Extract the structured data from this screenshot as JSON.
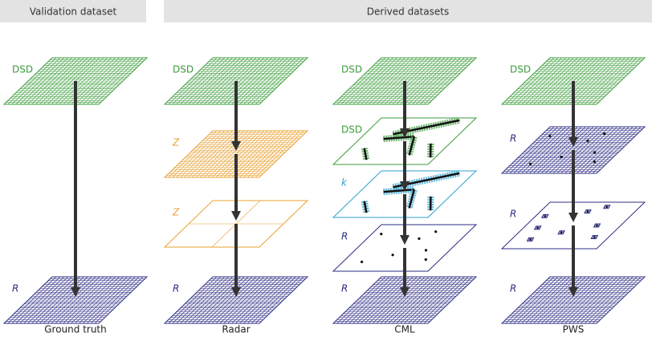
{
  "header": {
    "validation": "Validation dataset",
    "derived": "Derived datasets"
  },
  "columns": [
    {
      "layers": [
        "DSD",
        "R"
      ],
      "caption": "Ground truth"
    },
    {
      "layers": [
        "DSD",
        "Z",
        "Z",
        "R"
      ],
      "caption": "Radar"
    },
    {
      "layers": [
        "DSD",
        "DSD",
        "k",
        "R",
        "R"
      ],
      "caption": "CML"
    },
    {
      "layers": [
        "DSD",
        "R",
        "R",
        "R"
      ],
      "caption": "PWS"
    }
  ]
}
